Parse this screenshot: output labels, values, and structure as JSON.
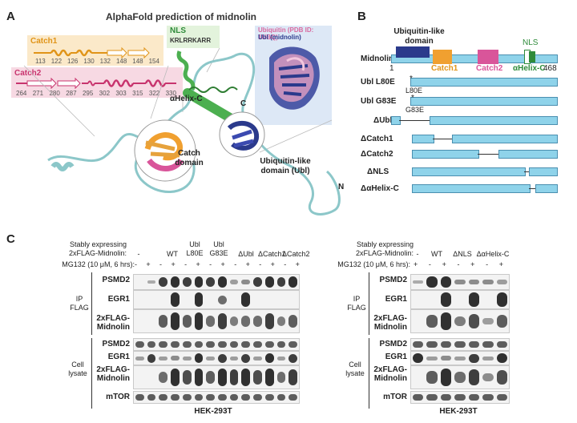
{
  "panelA": {
    "label": "A",
    "title": "AlphaFold prediction of midnolin",
    "catch1": {
      "name": "Catch1",
      "ticks": [
        "113",
        "122",
        "126",
        "130",
        "132",
        "148",
        "148",
        "154"
      ]
    },
    "catch2": {
      "name": "Catch2",
      "ticks": [
        "264",
        "271",
        "280",
        "287",
        "295",
        "302",
        "303",
        "315",
        "322",
        "330"
      ]
    },
    "nls_label": "NLS",
    "nls_seq": "KRLRRKARR",
    "inset_legend": [
      "Ubiquitin (PDB ID: 1UBQ)",
      "Ubl (midnolin)"
    ],
    "helix_label": "αHelix-C",
    "c_label": "C",
    "n_label": "N",
    "catch_domain_label": "Catch domain",
    "ubl_label": "Ubiquitin-like domain (Ubl)"
  },
  "panelB": {
    "label": "B",
    "top_labels": {
      "ubl": "Ubiquitin-like domain",
      "nls": "NLS",
      "catch1": "Catch1",
      "catch2": "Catch2",
      "helix": "αHelix-C",
      "start": "1",
      "end": "468"
    },
    "rows": [
      {
        "name": "Midnolin"
      },
      {
        "name": "Ubl L80E",
        "mut": "L80E"
      },
      {
        "name": "Ubl G83E",
        "mut": "G83E"
      },
      {
        "name": "ΔUbl"
      },
      {
        "name": "ΔCatch1"
      },
      {
        "name": "ΔCatch2"
      },
      {
        "name": "ΔNLS"
      },
      {
        "name": "ΔαHelix-C"
      }
    ]
  },
  "panelC": {
    "label": "C",
    "left": {
      "header1": "Stably expressing 2xFLAG-Midnolin:",
      "groups": [
        "-",
        "WT",
        "Ubl L80E",
        "Ubl G83E",
        "ΔUbl",
        "ΔCatch1",
        "ΔCatch2"
      ],
      "mg132": "MG132 (10 μM, 6 hrs):",
      "signs": [
        "-",
        "+",
        "-",
        "+",
        "-",
        "+",
        "-",
        "+",
        "-",
        "+",
        "-",
        "+",
        "-",
        "+"
      ],
      "ip_label": "IP FLAG",
      "lysate_label": "Cell lysate",
      "ip_rows": [
        "PSMD2",
        "EGR1",
        "2xFLAG-Midnolin"
      ],
      "lys_rows": [
        "PSMD2",
        "EGR1",
        "2xFLAG-Midnolin",
        "mTOR"
      ],
      "cell_line": "HEK-293T"
    },
    "right": {
      "header1": "Stably expressing 2xFLAG-Midnolin:",
      "groups": [
        "-",
        "WT",
        "ΔNLS",
        "ΔαHelix-C"
      ],
      "mg132": "MG132 (10 μM, 6 hrs):",
      "signs": [
        "+",
        "-",
        "+",
        "-",
        "+",
        "-",
        "+"
      ],
      "ip_label": "IP FLAG",
      "lysate_label": "Cell lysate",
      "ip_rows": [
        "PSMD2",
        "EGR1",
        "2xFLAG-Midnolin"
      ],
      "lys_rows": [
        "PSMD2",
        "EGR1",
        "2xFLAG-Midnolin",
        "mTOR"
      ],
      "cell_line": "HEK-293T"
    }
  },
  "colors": {
    "ubl": "#2b3a8c",
    "catch1": "#f0a030",
    "catch2": "#d9559a",
    "nls": "#2e8b3a",
    "helix": "#2e8b3a",
    "bar": "#8fd3ea",
    "coil": "#8cc7c9"
  }
}
